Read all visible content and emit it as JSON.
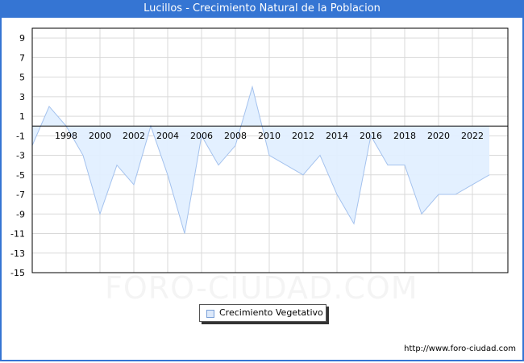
{
  "header": {
    "title": "Lucillos - Crecimiento Natural de la Poblacion"
  },
  "legend": {
    "label": "Crecimiento Vegetativo"
  },
  "footer": {
    "url": "http://www.foro-ciudad.com"
  },
  "watermark": "FORO-CIUDAD.COM",
  "colors": {
    "frame": "#3575d3",
    "line": "#a4c2ee",
    "fill": "#e2efff",
    "grid": "#d9d9d9",
    "zero_line": "#000000"
  },
  "chart_data": {
    "type": "area",
    "title": "Lucillos - Crecimiento Natural de la Poblacion",
    "xlabel": "",
    "ylabel": "",
    "x": [
      1996,
      1997,
      1998,
      1999,
      2000,
      2001,
      2002,
      2003,
      2004,
      2005,
      2006,
      2007,
      2008,
      2009,
      2010,
      2011,
      2012,
      2013,
      2014,
      2015,
      2016,
      2017,
      2018,
      2019,
      2020,
      2021,
      2022,
      2023
    ],
    "series": [
      {
        "name": "Crecimiento Vegetativo",
        "values": [
          -2,
          2,
          0,
          -3,
          -9,
          -4,
          -6,
          0,
          -5,
          -11,
          -1,
          -4,
          -2,
          4,
          -3,
          -4,
          -5,
          -3,
          -7,
          -10,
          -1,
          -4,
          -4,
          -9,
          -7,
          -7,
          -6,
          -5
        ]
      }
    ],
    "xticks": [
      1998,
      2000,
      2002,
      2004,
      2006,
      2008,
      2010,
      2012,
      2014,
      2016,
      2018,
      2020,
      2022
    ],
    "yticks": [
      9,
      7,
      5,
      3,
      1,
      -1,
      -3,
      -5,
      -7,
      -9,
      -11,
      -13,
      -15
    ],
    "ylim": [
      -15,
      10
    ],
    "grid": true,
    "legend_position": "bottom-center"
  }
}
